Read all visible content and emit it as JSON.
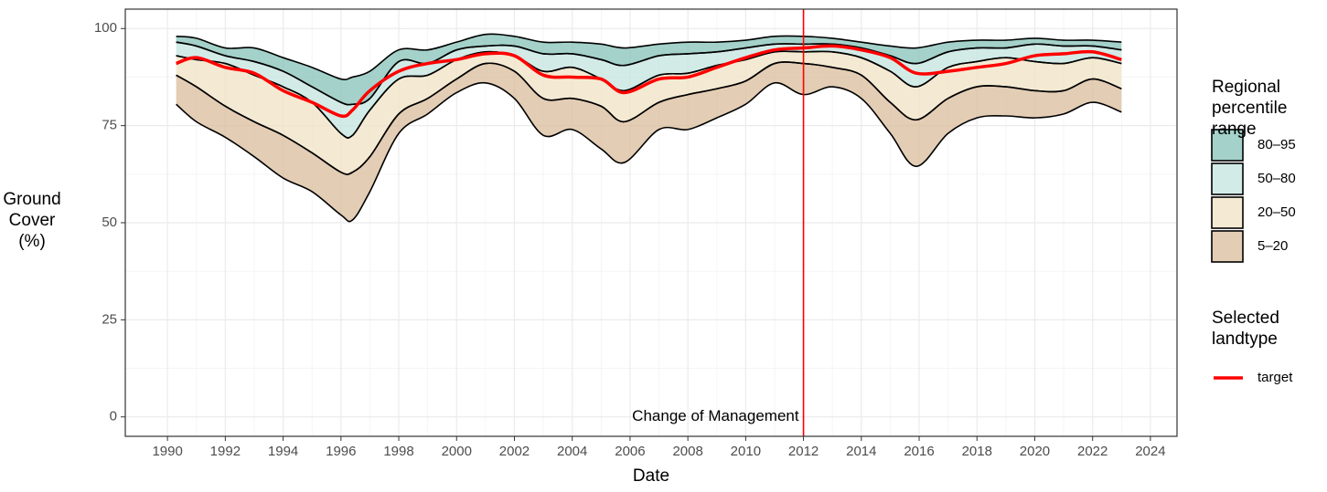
{
  "chart_data": {
    "type": "ribbon",
    "xlabel": "Date",
    "ylabel": "Ground Cover (%)",
    "x": [
      1990.3,
      1991,
      1992,
      1993,
      1994,
      1995,
      1996,
      1996.4,
      1997,
      1998,
      1999,
      2000,
      2001,
      2002,
      2003,
      2004,
      2005,
      2005.8,
      2007,
      2008,
      2009,
      2010,
      2011,
      2012,
      2013,
      2014,
      2015,
      2015.9,
      2017,
      2018,
      2019,
      2020,
      2021,
      2022,
      2023
    ],
    "bands_title": "Regional percentile range",
    "bands": [
      {
        "name": "80–95",
        "color": "#86c2b8",
        "lower": [
          96.5,
          95.5,
          93,
          91.5,
          89,
          85,
          81,
          80.5,
          82,
          91.5,
          91,
          94.5,
          95.5,
          95.5,
          93.5,
          93.5,
          92,
          90.5,
          93,
          93.5,
          94,
          95,
          96,
          96,
          96,
          95,
          93,
          91,
          94,
          95,
          95,
          96,
          95.5,
          95.5,
          94.5
        ],
        "upper": [
          98,
          97.5,
          95,
          95,
          92.5,
          90,
          87,
          87.5,
          89,
          94.5,
          94.5,
          96.5,
          98.5,
          98,
          96.5,
          96.5,
          96,
          95,
          96,
          96.5,
          96.5,
          97,
          98,
          98,
          97.5,
          96.5,
          95.5,
          95,
          96.5,
          97,
          97,
          97.5,
          97,
          97,
          96.5
        ]
      },
      {
        "name": "50–80",
        "color": "#c3e4df",
        "lower": [
          93,
          92,
          91,
          88,
          85,
          81,
          73,
          72.5,
          79,
          87,
          88,
          92,
          94,
          93,
          89,
          90,
          87,
          84,
          88,
          88.5,
          90.5,
          92,
          94,
          94,
          94,
          92.5,
          89,
          85,
          90,
          91.5,
          92.5,
          91.5,
          91,
          92.5,
          91
        ],
        "upper": [
          96.5,
          95.5,
          93,
          91.5,
          89,
          85,
          81,
          80.5,
          82,
          91.5,
          91,
          94.5,
          95.5,
          95.5,
          93.5,
          93.5,
          92,
          90.5,
          93,
          93.5,
          94,
          95,
          96,
          96,
          96,
          95,
          93,
          91,
          94,
          95,
          95,
          96,
          95.5,
          95.5,
          94.5
        ]
      },
      {
        "name": "20–50",
        "color": "#f0e3c4",
        "lower": [
          88,
          85,
          80,
          76,
          72.5,
          68,
          63,
          63,
          67,
          78,
          82,
          87,
          91,
          89,
          82,
          82,
          80,
          76,
          81,
          83,
          84.5,
          86.5,
          91,
          91,
          90,
          88,
          81,
          76.5,
          82,
          85,
          85,
          84,
          84,
          87,
          84.5
        ],
        "upper": [
          93,
          92,
          91,
          88,
          85,
          81,
          73,
          72.5,
          79,
          87,
          88,
          92,
          94,
          93,
          89,
          90,
          87,
          84,
          88,
          88.5,
          90.5,
          92,
          94,
          94,
          94,
          92.5,
          89,
          85,
          90,
          91.5,
          92.5,
          91.5,
          91,
          92.5,
          91
        ]
      },
      {
        "name": "5–20",
        "color": "#d9bc9c",
        "lower": [
          80.5,
          76,
          72,
          67,
          61.5,
          58,
          52,
          50.7,
          58,
          73,
          78,
          83.5,
          86,
          82,
          72.5,
          74,
          69,
          65.5,
          74,
          74,
          77,
          80.5,
          86,
          83,
          85,
          82,
          73,
          64.5,
          73,
          77,
          77.5,
          77,
          78,
          81,
          78.5
        ],
        "upper": [
          88,
          85,
          80,
          76,
          72.5,
          68,
          63,
          63,
          67,
          78,
          82,
          87,
          91,
          89,
          82,
          82,
          80,
          76,
          81,
          83,
          84.5,
          86.5,
          91,
          91,
          90,
          88,
          81,
          76.5,
          82,
          85,
          85,
          84,
          84,
          87,
          84.5
        ]
      }
    ],
    "lines_title": "Selected landtype",
    "series": [
      {
        "name": "target",
        "color": "#ff0000",
        "values": [
          91,
          92.5,
          90,
          88.5,
          84,
          81,
          77.5,
          79,
          84,
          89,
          91,
          92,
          93.5,
          93,
          88,
          87.5,
          87,
          83.5,
          87,
          87.5,
          90,
          92.5,
          94.5,
          95,
          95.5,
          94.5,
          92.5,
          88.5,
          89,
          90,
          91,
          93,
          93.5,
          94,
          92
        ]
      }
    ],
    "annotation": {
      "text": "Change of Management",
      "x": 2012,
      "color": "#ff0000"
    },
    "xlim": [
      1988.54,
      2024.92
    ],
    "ylim": [
      -5,
      105
    ],
    "xticks": [
      1990,
      1992,
      1994,
      1996,
      1998,
      2000,
      2002,
      2004,
      2006,
      2008,
      2010,
      2012,
      2014,
      2016,
      2018,
      2020,
      2022,
      2024
    ],
    "yticks": [
      0,
      25,
      50,
      75,
      100
    ],
    "grid": true,
    "minor_grid": true,
    "legend": "right"
  }
}
